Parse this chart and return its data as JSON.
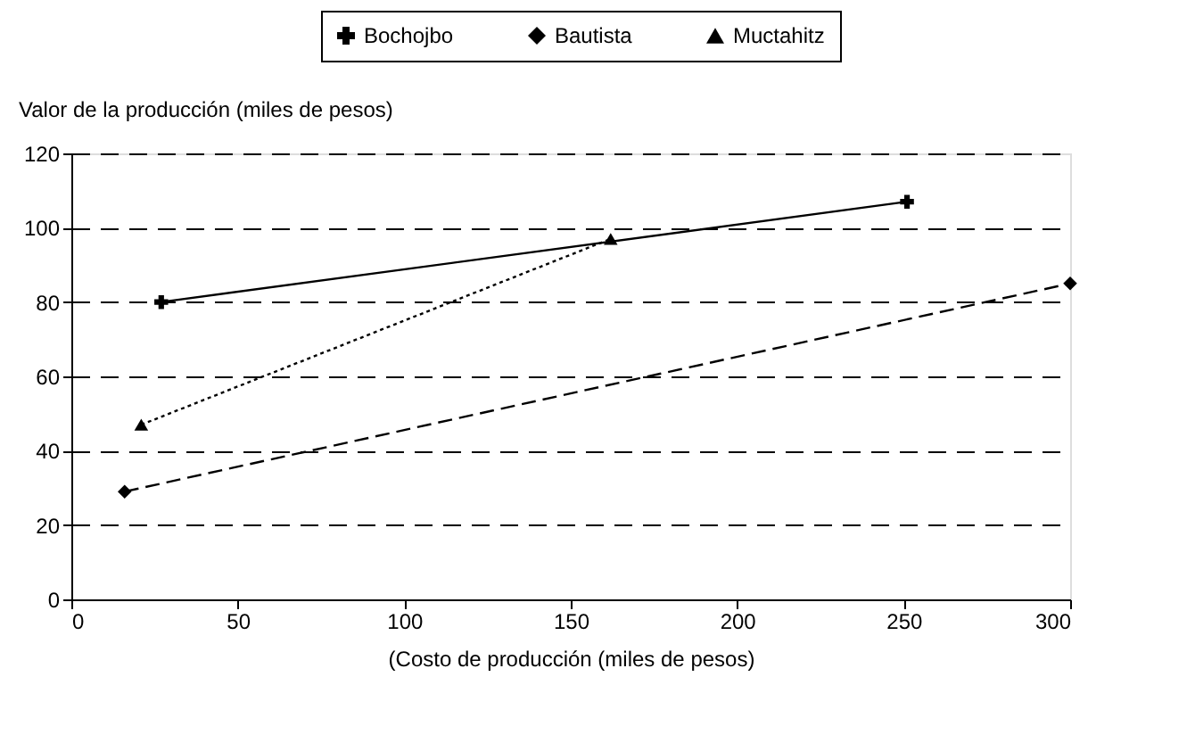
{
  "chart_data": {
    "type": "line",
    "xlabel": "(Costo de producción (miles de pesos)",
    "ylabel": "Valor de la producción (miles de pesos)",
    "xlim": [
      0,
      300
    ],
    "xticks": [
      0,
      50,
      100,
      150,
      200,
      250,
      300
    ],
    "ylim": [
      0,
      120
    ],
    "yticks": [
      0,
      20,
      40,
      60,
      80,
      100,
      120
    ],
    "grid": "y",
    "legend": "top",
    "series": [
      {
        "name": "Bochojbo",
        "color": "#000000",
        "x": [
          27,
          251
        ],
        "values": [
          80,
          107
        ],
        "marker": "cross",
        "line_style": "solid"
      },
      {
        "name": "Bautista",
        "color": "#000000",
        "x": [
          16,
          300
        ],
        "values": [
          29,
          85
        ],
        "marker": "diamond",
        "line_style": "dashed"
      },
      {
        "name": "Muctahitz",
        "color": "#000000",
        "x": [
          21,
          162
        ],
        "values": [
          47,
          97
        ],
        "marker": "triangle",
        "line_style": "dotted"
      }
    ]
  }
}
